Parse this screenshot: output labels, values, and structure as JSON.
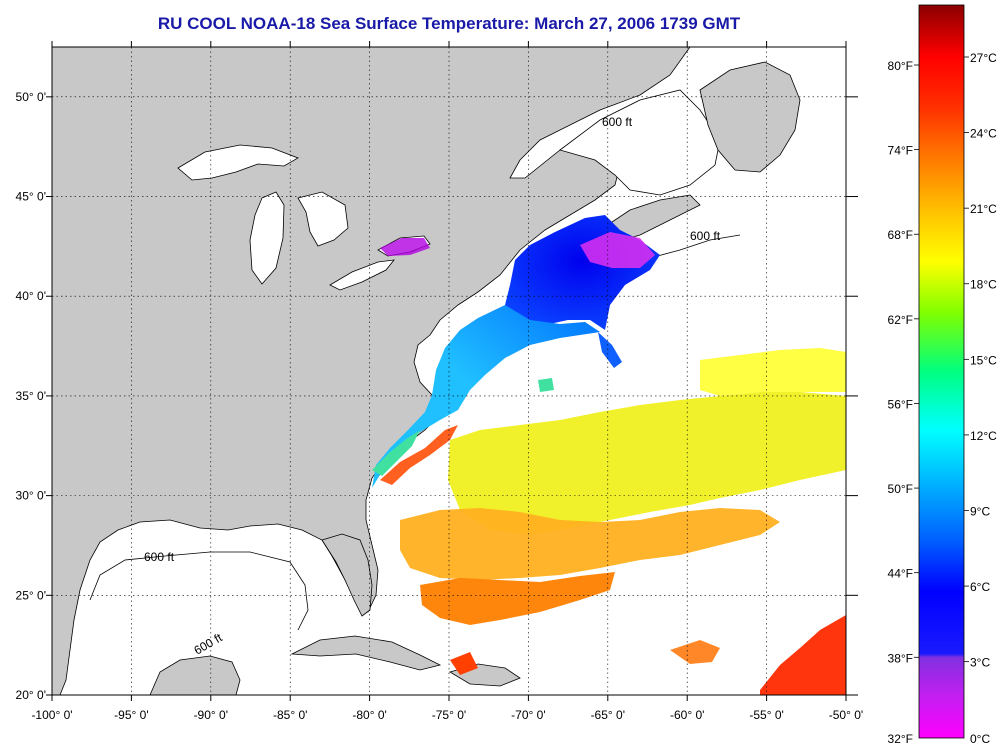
{
  "title": "RU COOL  NOAA-18  Sea Surface Temperature:  March 27, 2006 1739 GMT",
  "map": {
    "lon_range": [
      -100,
      -50
    ],
    "lat_range": [
      20,
      52.5
    ],
    "lon_labels": [
      "-100° 0'",
      "-95° 0'",
      "-90° 0'",
      "-85° 0'",
      "-80° 0'",
      "-75° 0'",
      "-70° 0'",
      "-65° 0'",
      "-60° 0'",
      "-55° 0'",
      "-50° 0'"
    ],
    "lat_labels": [
      "20° 0'",
      "25° 0'",
      "30° 0'",
      "35° 0'",
      "40° 0'",
      "45° 0'",
      "50° 0'"
    ],
    "isobath_label": "600 ft",
    "land_color": "#c8c8c8",
    "cloud_color": "#ffffff"
  },
  "colorbar": {
    "f_labels": [
      "80°F",
      "74°F",
      "68°F",
      "62°F",
      "56°F",
      "50°F",
      "44°F",
      "38°F",
      "32°F"
    ],
    "c_labels": [
      "27°C",
      "24°C",
      "21°C",
      "18°C",
      "15°C",
      "12°C",
      "9°C",
      "6°C",
      "3°C",
      "0°C"
    ],
    "colors": [
      "#ff00ff",
      "#8a2be2",
      "#0000ff",
      "#0050ff",
      "#00b0ff",
      "#00ffff",
      "#00ff80",
      "#80ff00",
      "#ffff00",
      "#ffc000",
      "#ff8000",
      "#ff3000",
      "#ff0000",
      "#a00000"
    ]
  }
}
